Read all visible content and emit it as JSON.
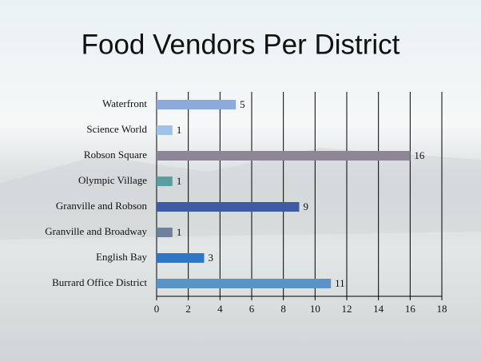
{
  "chart_data": {
    "type": "bar",
    "orientation": "horizontal",
    "title": "Food Vendors Per District",
    "categories": [
      "Waterfront",
      "Science World",
      "Robson Square",
      "Olympic Village",
      "Granville and Robson",
      "Granville and Broadway",
      "English Bay",
      "Burrard Office District"
    ],
    "values": [
      5,
      1,
      16,
      1,
      9,
      1,
      3,
      11
    ],
    "colors": [
      "#8eaadb",
      "#9dc3e6",
      "#8e8696",
      "#5b9ea0",
      "#3f5ba3",
      "#6f7f9c",
      "#2e75c6",
      "#5a93c6"
    ],
    "xlim": [
      0,
      18
    ],
    "xticks": [
      0,
      2,
      4,
      6,
      8,
      10,
      12,
      14,
      16,
      18
    ],
    "grid": true
  }
}
